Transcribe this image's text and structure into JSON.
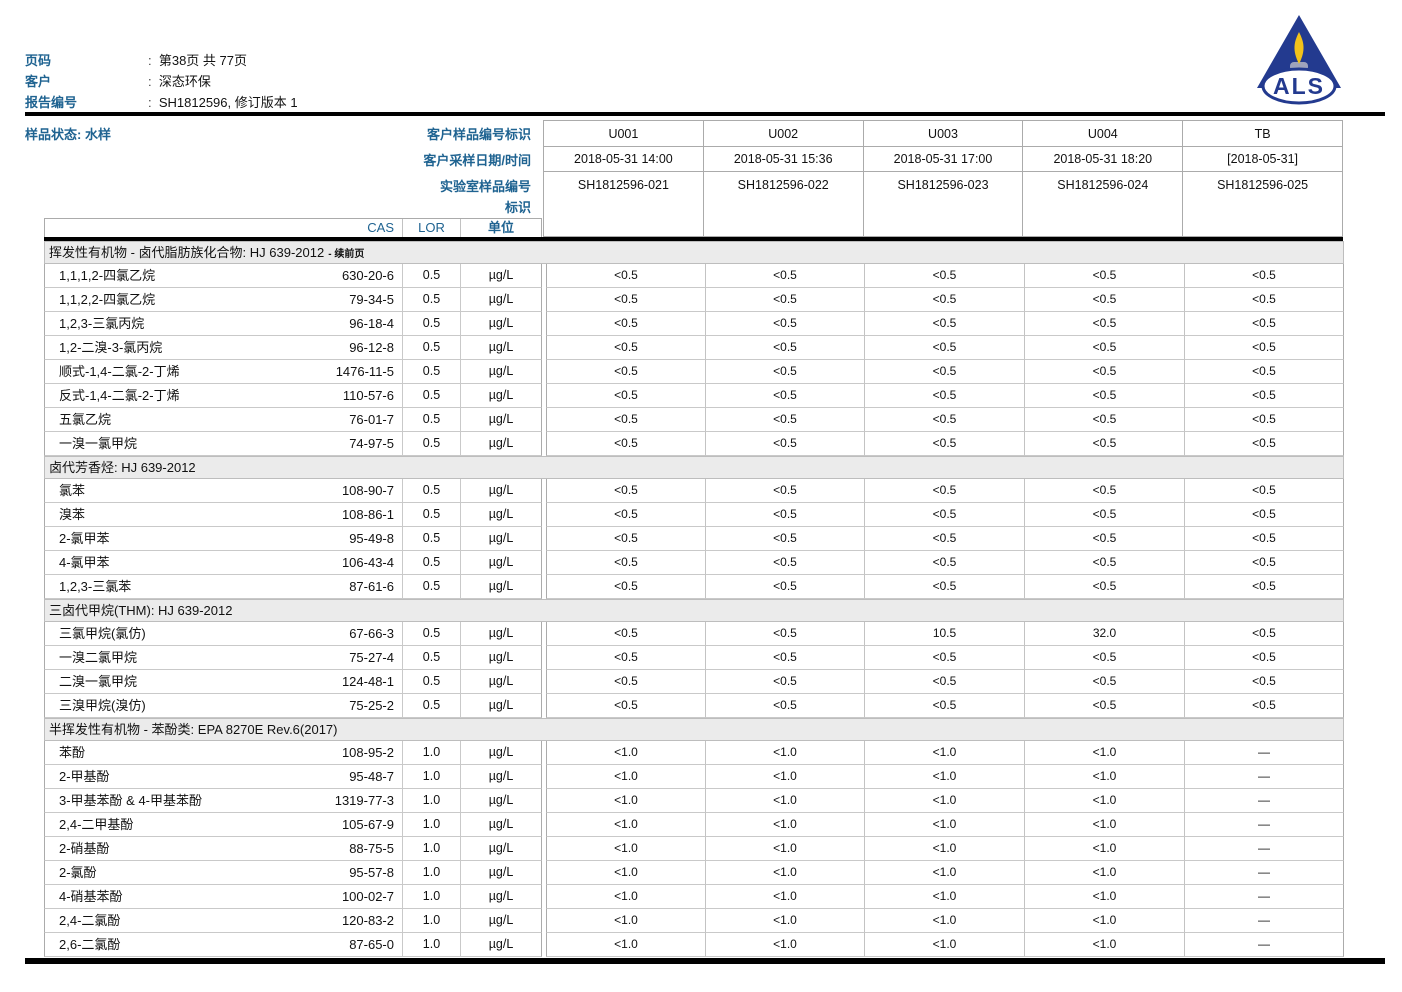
{
  "colors": {
    "accent": "#1F6391",
    "band_bg": "#EBEBEB",
    "border": "#ABABAB",
    "logo_navy": "#233A8F",
    "logo_flame": "#F2C21B",
    "logo_candle": "#9FA3BC"
  },
  "page_header": {
    "fields": [
      {
        "label": "页码",
        "value": "第38页 共 77页"
      },
      {
        "label": "客户",
        "value": "深态环保"
      },
      {
        "label": "报告编号",
        "value": "SH1812596, 修订版本 1"
      }
    ],
    "logo_text": "ALS"
  },
  "sample_header": {
    "status_label": "样品状态:",
    "status_value": "水样",
    "row_labels": [
      "客户样品编号标识",
      "客户采样日期/时间",
      "实验室样品编号",
      "标识"
    ],
    "col_headers": [
      "CAS",
      "LOR",
      "单位"
    ],
    "columns": [
      {
        "id": "U001",
        "datetime": "2018-05-31 14:00",
        "lab_id": "SH1812596-021"
      },
      {
        "id": "U002",
        "datetime": "2018-05-31 15:36",
        "lab_id": "SH1812596-022"
      },
      {
        "id": "U003",
        "datetime": "2018-05-31 17:00",
        "lab_id": "SH1812596-023"
      },
      {
        "id": "U004",
        "datetime": "2018-05-31 18:20",
        "lab_id": "SH1812596-024"
      },
      {
        "id": "TB",
        "datetime": "[2018-05-31]",
        "lab_id": "SH1812596-025"
      }
    ]
  },
  "results": {
    "sections": [
      {
        "title": "挥发性有机物 - 卤代脂肪族化合物: HJ 639-2012",
        "suffix": "- 续前页",
        "rows": [
          {
            "name": "1,1,1,2-四氯乙烷",
            "cas": "630-20-6",
            "lor": "0.5",
            "unit": "µg/L",
            "values": [
              "<0.5",
              "<0.5",
              "<0.5",
              "<0.5",
              "<0.5"
            ]
          },
          {
            "name": "1,1,2,2-四氯乙烷",
            "cas": "79-34-5",
            "lor": "0.5",
            "unit": "µg/L",
            "values": [
              "<0.5",
              "<0.5",
              "<0.5",
              "<0.5",
              "<0.5"
            ]
          },
          {
            "name": "1,2,3-三氯丙烷",
            "cas": "96-18-4",
            "lor": "0.5",
            "unit": "µg/L",
            "values": [
              "<0.5",
              "<0.5",
              "<0.5",
              "<0.5",
              "<0.5"
            ]
          },
          {
            "name": "1,2-二溴-3-氯丙烷",
            "cas": "96-12-8",
            "lor": "0.5",
            "unit": "µg/L",
            "values": [
              "<0.5",
              "<0.5",
              "<0.5",
              "<0.5",
              "<0.5"
            ]
          },
          {
            "name": "顺式-1,4-二氯-2-丁烯",
            "cas": "1476-11-5",
            "lor": "0.5",
            "unit": "µg/L",
            "values": [
              "<0.5",
              "<0.5",
              "<0.5",
              "<0.5",
              "<0.5"
            ]
          },
          {
            "name": "反式-1,4-二氯-2-丁烯",
            "cas": "110-57-6",
            "lor": "0.5",
            "unit": "µg/L",
            "values": [
              "<0.5",
              "<0.5",
              "<0.5",
              "<0.5",
              "<0.5"
            ]
          },
          {
            "name": "五氯乙烷",
            "cas": "76-01-7",
            "lor": "0.5",
            "unit": "µg/L",
            "values": [
              "<0.5",
              "<0.5",
              "<0.5",
              "<0.5",
              "<0.5"
            ]
          },
          {
            "name": "一溴一氯甲烷",
            "cas": "74-97-5",
            "lor": "0.5",
            "unit": "µg/L",
            "values": [
              "<0.5",
              "<0.5",
              "<0.5",
              "<0.5",
              "<0.5"
            ]
          }
        ]
      },
      {
        "title": "卤代芳香烃: HJ 639-2012",
        "suffix": "",
        "rows": [
          {
            "name": "氯苯",
            "cas": "108-90-7",
            "lor": "0.5",
            "unit": "µg/L",
            "values": [
              "<0.5",
              "<0.5",
              "<0.5",
              "<0.5",
              "<0.5"
            ]
          },
          {
            "name": "溴苯",
            "cas": "108-86-1",
            "lor": "0.5",
            "unit": "µg/L",
            "values": [
              "<0.5",
              "<0.5",
              "<0.5",
              "<0.5",
              "<0.5"
            ]
          },
          {
            "name": "2-氯甲苯",
            "cas": "95-49-8",
            "lor": "0.5",
            "unit": "µg/L",
            "values": [
              "<0.5",
              "<0.5",
              "<0.5",
              "<0.5",
              "<0.5"
            ]
          },
          {
            "name": "4-氯甲苯",
            "cas": "106-43-4",
            "lor": "0.5",
            "unit": "µg/L",
            "values": [
              "<0.5",
              "<0.5",
              "<0.5",
              "<0.5",
              "<0.5"
            ]
          },
          {
            "name": "1,2,3-三氯苯",
            "cas": "87-61-6",
            "lor": "0.5",
            "unit": "µg/L",
            "values": [
              "<0.5",
              "<0.5",
              "<0.5",
              "<0.5",
              "<0.5"
            ]
          }
        ]
      },
      {
        "title": "三卤代甲烷(THM): HJ 639-2012",
        "suffix": "",
        "rows": [
          {
            "name": "三氯甲烷(氯仿)",
            "cas": "67-66-3",
            "lor": "0.5",
            "unit": "µg/L",
            "values": [
              "<0.5",
              "<0.5",
              "10.5",
              "32.0",
              "<0.5"
            ]
          },
          {
            "name": "一溴二氯甲烷",
            "cas": "75-27-4",
            "lor": "0.5",
            "unit": "µg/L",
            "values": [
              "<0.5",
              "<0.5",
              "<0.5",
              "<0.5",
              "<0.5"
            ]
          },
          {
            "name": "二溴一氯甲烷",
            "cas": "124-48-1",
            "lor": "0.5",
            "unit": "µg/L",
            "values": [
              "<0.5",
              "<0.5",
              "<0.5",
              "<0.5",
              "<0.5"
            ]
          },
          {
            "name": "三溴甲烷(溴仿)",
            "cas": "75-25-2",
            "lor": "0.5",
            "unit": "µg/L",
            "values": [
              "<0.5",
              "<0.5",
              "<0.5",
              "<0.5",
              "<0.5"
            ]
          }
        ]
      },
      {
        "title": "半挥发性有机物 - 苯酚类: EPA 8270E Rev.6(2017)",
        "suffix": "",
        "rows": [
          {
            "name": "苯酚",
            "cas": "108-95-2",
            "lor": "1.0",
            "unit": "µg/L",
            "values": [
              "<1.0",
              "<1.0",
              "<1.0",
              "<1.0",
              "—"
            ]
          },
          {
            "name": "2-甲基酚",
            "cas": "95-48-7",
            "lor": "1.0",
            "unit": "µg/L",
            "values": [
              "<1.0",
              "<1.0",
              "<1.0",
              "<1.0",
              "—"
            ]
          },
          {
            "name": "3-甲基苯酚 & 4-甲基苯酚",
            "cas": "1319-77-3",
            "lor": "1.0",
            "unit": "µg/L",
            "values": [
              "<1.0",
              "<1.0",
              "<1.0",
              "<1.0",
              "—"
            ]
          },
          {
            "name": "2,4-二甲基酚",
            "cas": "105-67-9",
            "lor": "1.0",
            "unit": "µg/L",
            "values": [
              "<1.0",
              "<1.0",
              "<1.0",
              "<1.0",
              "—"
            ]
          },
          {
            "name": "2-硝基酚",
            "cas": "88-75-5",
            "lor": "1.0",
            "unit": "µg/L",
            "values": [
              "<1.0",
              "<1.0",
              "<1.0",
              "<1.0",
              "—"
            ]
          },
          {
            "name": "2-氯酚",
            "cas": "95-57-8",
            "lor": "1.0",
            "unit": "µg/L",
            "values": [
              "<1.0",
              "<1.0",
              "<1.0",
              "<1.0",
              "—"
            ]
          },
          {
            "name": "4-硝基苯酚",
            "cas": "100-02-7",
            "lor": "1.0",
            "unit": "µg/L",
            "values": [
              "<1.0",
              "<1.0",
              "<1.0",
              "<1.0",
              "—"
            ]
          },
          {
            "name": "2,4-二氯酚",
            "cas": "120-83-2",
            "lor": "1.0",
            "unit": "µg/L",
            "values": [
              "<1.0",
              "<1.0",
              "<1.0",
              "<1.0",
              "—"
            ]
          },
          {
            "name": "2,6-二氯酚",
            "cas": "87-65-0",
            "lor": "1.0",
            "unit": "µg/L",
            "values": [
              "<1.0",
              "<1.0",
              "<1.0",
              "<1.0",
              "—"
            ]
          }
        ]
      }
    ]
  }
}
